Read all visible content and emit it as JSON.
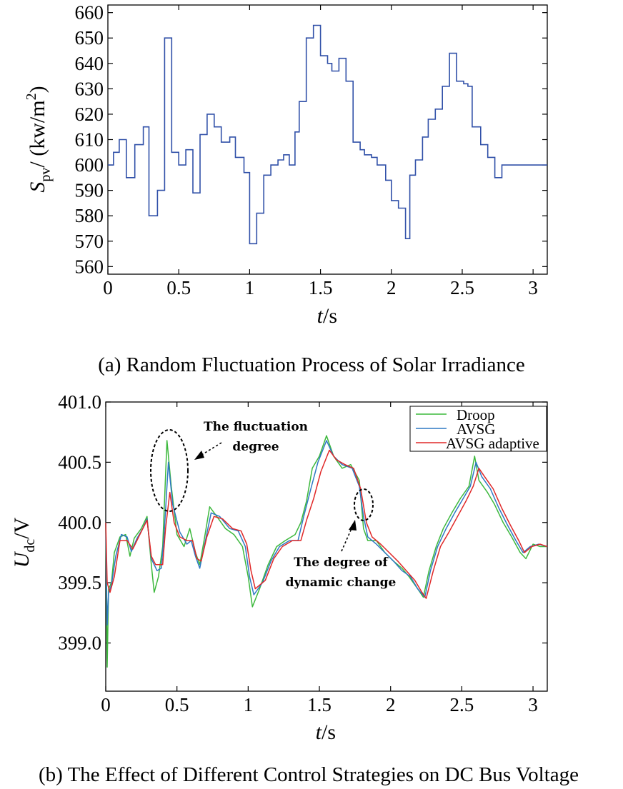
{
  "figure": {
    "caption_a": "(a) Random Fluctuation Process of Solar Irradiance",
    "caption_b": "(b) The Effect of Different Control Strategies on DC Bus Voltage"
  },
  "chart_data": [
    {
      "type": "line",
      "title": "(a) Random Fluctuation Process of Solar Irradiance",
      "xlabel_main": "t",
      "xlabel_unit": "/s",
      "ylabel_main": "S",
      "ylabel_sub": "pv",
      "ylabel_unit": "/ (kw/m",
      "ylabel_sup": "2",
      "ylabel_close": ")",
      "xlim": [
        0,
        3.1
      ],
      "ylim": [
        557,
        663
      ],
      "xticks": [
        0,
        0.5,
        1,
        1.5,
        2,
        2.5,
        3
      ],
      "xtick_labels": [
        "0",
        "0.5",
        "1",
        "1.5",
        "2",
        "2.5",
        "3"
      ],
      "yticks": [
        560,
        570,
        580,
        590,
        600,
        610,
        620,
        630,
        640,
        650,
        660
      ],
      "ytick_labels": [
        "560",
        "570",
        "580",
        "590",
        "600",
        "610",
        "620",
        "630",
        "640",
        "650",
        "660"
      ],
      "color": "#3050a8",
      "step_x": [
        0,
        0.04,
        0.08,
        0.13,
        0.19,
        0.25,
        0.29,
        0.35,
        0.4,
        0.45,
        0.5,
        0.55,
        0.6,
        0.65,
        0.7,
        0.75,
        0.8,
        0.86,
        0.9,
        0.96,
        1.0,
        1.05,
        1.1,
        1.15,
        1.2,
        1.24,
        1.28,
        1.32,
        1.35,
        1.4,
        1.45,
        1.5,
        1.55,
        1.58,
        1.63,
        1.68,
        1.73,
        1.78,
        1.81,
        1.86,
        1.9,
        1.96,
        2.0,
        2.05,
        2.1,
        2.13,
        2.17,
        2.22,
        2.26,
        2.31,
        2.36,
        2.41,
        2.46,
        2.51,
        2.54,
        2.57,
        2.63,
        2.68,
        2.73,
        2.78,
        2.84,
        2.88,
        2.94,
        3.1
      ],
      "step_y": [
        600,
        605,
        610,
        595,
        608,
        615,
        580,
        590,
        650,
        605,
        600,
        606,
        589,
        612,
        620,
        615,
        609,
        611,
        603,
        597,
        569,
        581,
        596,
        600,
        602,
        604,
        600,
        613,
        625,
        650,
        655,
        643,
        640,
        637,
        642,
        633,
        609,
        606,
        604,
        603,
        600,
        594,
        586,
        583,
        571,
        596,
        602,
        611,
        618,
        622,
        631,
        644,
        633,
        632,
        631,
        615,
        608,
        603,
        595,
        600,
        600,
        600,
        600,
        600
      ]
    },
    {
      "type": "line",
      "title": "(b) The Effect of Different Control Strategies on DC Bus Voltage",
      "xlabel_main": "t",
      "xlabel_unit": "/s",
      "ylabel_main": "U",
      "ylabel_sub": "dc",
      "ylabel_unit": "/V",
      "xlim": [
        0,
        3.1
      ],
      "ylim": [
        398.6,
        401.0
      ],
      "xticks": [
        0,
        0.5,
        1,
        1.5,
        2,
        2.5,
        3
      ],
      "xtick_labels": [
        "0",
        "0.5",
        "1",
        "1.5",
        "2",
        "2.5",
        "3"
      ],
      "yticks": [
        399.0,
        399.5,
        400.0,
        400.5,
        401.0
      ],
      "ytick_labels": [
        "399.0",
        "399.5",
        "400.0",
        "400.5",
        "401.0"
      ],
      "legend_position": "top-right",
      "series": [
        {
          "name": "Droop",
          "color": "#3cb83c",
          "points": [
            [
              0,
              400.0
            ],
            [
              0.01,
              398.8
            ],
            [
              0.02,
              399.45
            ],
            [
              0.04,
              399.5
            ],
            [
              0.06,
              399.75
            ],
            [
              0.1,
              399.88
            ],
            [
              0.14,
              399.9
            ],
            [
              0.17,
              399.72
            ],
            [
              0.2,
              399.87
            ],
            [
              0.25,
              399.95
            ],
            [
              0.29,
              400.05
            ],
            [
              0.32,
              399.65
            ],
            [
              0.34,
              399.42
            ],
            [
              0.37,
              399.55
            ],
            [
              0.4,
              399.8
            ],
            [
              0.43,
              400.68
            ],
            [
              0.46,
              400.3
            ],
            [
              0.5,
              399.9
            ],
            [
              0.55,
              399.8
            ],
            [
              0.59,
              399.95
            ],
            [
              0.63,
              399.75
            ],
            [
              0.66,
              399.65
            ],
            [
              0.69,
              399.85
            ],
            [
              0.73,
              400.13
            ],
            [
              0.78,
              400.05
            ],
            [
              0.84,
              399.95
            ],
            [
              0.9,
              399.9
            ],
            [
              0.96,
              399.8
            ],
            [
              1.0,
              399.55
            ],
            [
              1.03,
              399.3
            ],
            [
              1.08,
              399.45
            ],
            [
              1.14,
              399.65
            ],
            [
              1.2,
              399.8
            ],
            [
              1.26,
              399.85
            ],
            [
              1.33,
              399.9
            ],
            [
              1.37,
              400.0
            ],
            [
              1.41,
              400.18
            ],
            [
              1.45,
              400.45
            ],
            [
              1.5,
              400.55
            ],
            [
              1.55,
              400.72
            ],
            [
              1.6,
              400.55
            ],
            [
              1.66,
              400.45
            ],
            [
              1.72,
              400.48
            ],
            [
              1.78,
              400.35
            ],
            [
              1.81,
              399.95
            ],
            [
              1.84,
              399.85
            ],
            [
              1.9,
              399.85
            ],
            [
              1.96,
              399.75
            ],
            [
              2.02,
              399.68
            ],
            [
              2.08,
              399.62
            ],
            [
              2.13,
              399.55
            ],
            [
              2.19,
              399.45
            ],
            [
              2.23,
              399.38
            ],
            [
              2.27,
              399.6
            ],
            [
              2.32,
              399.8
            ],
            [
              2.37,
              399.95
            ],
            [
              2.43,
              400.08
            ],
            [
              2.49,
              400.2
            ],
            [
              2.55,
              400.3
            ],
            [
              2.59,
              400.55
            ],
            [
              2.62,
              400.35
            ],
            [
              2.68,
              400.25
            ],
            [
              2.73,
              400.15
            ],
            [
              2.79,
              400.0
            ],
            [
              2.85,
              399.88
            ],
            [
              2.91,
              399.75
            ],
            [
              2.95,
              399.7
            ],
            [
              3.0,
              399.82
            ],
            [
              3.05,
              399.8
            ],
            [
              3.1,
              399.8
            ]
          ]
        },
        {
          "name": "AVSG",
          "color": "#2e78c4",
          "points": [
            [
              0,
              400.0
            ],
            [
              0.01,
              399.15
            ],
            [
              0.02,
              399.42
            ],
            [
              0.04,
              399.48
            ],
            [
              0.07,
              399.72
            ],
            [
              0.11,
              399.9
            ],
            [
              0.15,
              399.88
            ],
            [
              0.18,
              399.76
            ],
            [
              0.22,
              399.87
            ],
            [
              0.26,
              399.95
            ],
            [
              0.29,
              400.03
            ],
            [
              0.32,
              399.7
            ],
            [
              0.36,
              399.6
            ],
            [
              0.39,
              399.62
            ],
            [
              0.41,
              399.9
            ],
            [
              0.44,
              400.5
            ],
            [
              0.47,
              400.15
            ],
            [
              0.52,
              399.92
            ],
            [
              0.57,
              399.82
            ],
            [
              0.6,
              399.85
            ],
            [
              0.63,
              399.72
            ],
            [
              0.66,
              399.62
            ],
            [
              0.7,
              399.85
            ],
            [
              0.74,
              400.08
            ],
            [
              0.8,
              400.05
            ],
            [
              0.87,
              399.95
            ],
            [
              0.93,
              399.93
            ],
            [
              0.98,
              399.8
            ],
            [
              1.01,
              399.55
            ],
            [
              1.04,
              399.4
            ],
            [
              1.1,
              399.5
            ],
            [
              1.16,
              399.68
            ],
            [
              1.22,
              399.8
            ],
            [
              1.29,
              399.85
            ],
            [
              1.35,
              399.85
            ],
            [
              1.39,
              400.05
            ],
            [
              1.44,
              400.28
            ],
            [
              1.49,
              400.5
            ],
            [
              1.55,
              400.68
            ],
            [
              1.6,
              400.55
            ],
            [
              1.66,
              400.48
            ],
            [
              1.73,
              400.45
            ],
            [
              1.78,
              400.3
            ],
            [
              1.81,
              400.05
            ],
            [
              1.84,
              399.88
            ],
            [
              1.9,
              399.82
            ],
            [
              1.96,
              399.75
            ],
            [
              2.02,
              399.68
            ],
            [
              2.08,
              399.6
            ],
            [
              2.14,
              399.55
            ],
            [
              2.19,
              399.45
            ],
            [
              2.24,
              399.38
            ],
            [
              2.28,
              399.6
            ],
            [
              2.33,
              399.8
            ],
            [
              2.39,
              399.95
            ],
            [
              2.45,
              400.08
            ],
            [
              2.51,
              400.2
            ],
            [
              2.56,
              400.3
            ],
            [
              2.6,
              400.5
            ],
            [
              2.64,
              400.38
            ],
            [
              2.7,
              400.28
            ],
            [
              2.76,
              400.12
            ],
            [
              2.82,
              399.98
            ],
            [
              2.88,
              399.85
            ],
            [
              2.93,
              399.75
            ],
            [
              2.98,
              399.8
            ],
            [
              3.04,
              399.82
            ],
            [
              3.1,
              399.8
            ]
          ]
        },
        {
          "name": "AVSG adaptive",
          "color": "#e02828",
          "points": [
            [
              0,
              400.0
            ],
            [
              0.01,
              399.5
            ],
            [
              0.03,
              399.42
            ],
            [
              0.06,
              399.55
            ],
            [
              0.1,
              399.85
            ],
            [
              0.15,
              399.85
            ],
            [
              0.19,
              399.78
            ],
            [
              0.24,
              399.9
            ],
            [
              0.29,
              400.02
            ],
            [
              0.32,
              399.72
            ],
            [
              0.35,
              399.65
            ],
            [
              0.4,
              399.65
            ],
            [
              0.42,
              399.95
            ],
            [
              0.45,
              400.25
            ],
            [
              0.48,
              400.0
            ],
            [
              0.52,
              399.88
            ],
            [
              0.57,
              399.85
            ],
            [
              0.61,
              399.85
            ],
            [
              0.64,
              399.7
            ],
            [
              0.67,
              399.68
            ],
            [
              0.71,
              399.88
            ],
            [
              0.76,
              400.05
            ],
            [
              0.82,
              400.03
            ],
            [
              0.89,
              399.95
            ],
            [
              0.95,
              399.93
            ],
            [
              0.99,
              399.82
            ],
            [
              1.02,
              399.6
            ],
            [
              1.05,
              399.45
            ],
            [
              1.12,
              399.52
            ],
            [
              1.18,
              399.7
            ],
            [
              1.24,
              399.8
            ],
            [
              1.31,
              399.85
            ],
            [
              1.37,
              399.85
            ],
            [
              1.41,
              400.02
            ],
            [
              1.46,
              400.2
            ],
            [
              1.51,
              400.42
            ],
            [
              1.57,
              400.6
            ],
            [
              1.62,
              400.52
            ],
            [
              1.68,
              400.48
            ],
            [
              1.74,
              400.45
            ],
            [
              1.79,
              400.28
            ],
            [
              1.83,
              400.0
            ],
            [
              1.87,
              399.88
            ],
            [
              1.93,
              399.82
            ],
            [
              1.99,
              399.75
            ],
            [
              2.05,
              399.68
            ],
            [
              2.11,
              399.6
            ],
            [
              2.17,
              399.52
            ],
            [
              2.22,
              399.42
            ],
            [
              2.25,
              399.37
            ],
            [
              2.3,
              399.6
            ],
            [
              2.35,
              399.8
            ],
            [
              2.41,
              399.92
            ],
            [
              2.47,
              400.05
            ],
            [
              2.53,
              400.18
            ],
            [
              2.58,
              400.3
            ],
            [
              2.62,
              400.45
            ],
            [
              2.66,
              400.38
            ],
            [
              2.72,
              400.28
            ],
            [
              2.78,
              400.12
            ],
            [
              2.84,
              399.98
            ],
            [
              2.9,
              399.85
            ],
            [
              2.94,
              399.75
            ],
            [
              2.99,
              399.8
            ],
            [
              3.05,
              399.82
            ],
            [
              3.1,
              399.8
            ]
          ]
        }
      ],
      "annotations": {
        "fluctuation_line1": "The fluctuation",
        "fluctuation_line2": "degree",
        "dynamic_line1": "The degree of",
        "dynamic_line2": "dynamic change"
      }
    }
  ]
}
